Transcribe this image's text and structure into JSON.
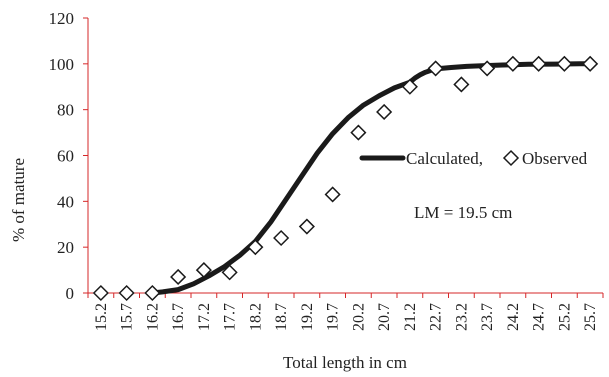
{
  "chart_data": {
    "type": "line",
    "xlabel": "Total length in cm",
    "ylabel": "% of mature",
    "ylim": [
      0,
      120
    ],
    "yticks": [
      0,
      20,
      40,
      60,
      80,
      100,
      120
    ],
    "categories": [
      "15.2",
      "15.7",
      "16.2",
      "16.7",
      "17.2",
      "17.7",
      "18.2",
      "18.7",
      "19.2",
      "19.7",
      "20.2",
      "20.7",
      "21.2",
      "22.7",
      "23.2",
      "23.7",
      "24.2",
      "24.7",
      "25.2",
      "25.7"
    ],
    "legend_position": "right",
    "annotation": "LM = 19.5 cm",
    "colors": {
      "axes": "#d62728",
      "series": "#1a1a1a"
    },
    "series": [
      {
        "name": "Calculated,",
        "style": "line",
        "x": [
          16.2,
          16.4,
          16.7,
          17.0,
          17.3,
          17.6,
          17.9,
          18.2,
          18.5,
          18.8,
          19.1,
          19.4,
          19.7,
          20.0,
          20.3,
          20.6,
          20.9,
          21.2,
          21.5,
          21.8,
          22.1,
          22.4,
          22.7,
          23.0,
          23.3,
          23.6,
          24.0,
          24.5,
          25.0,
          25.5,
          25.7
        ],
        "y": [
          0,
          0.5,
          1.5,
          4,
          7.5,
          11.5,
          16.5,
          22.5,
          31,
          41,
          51,
          61,
          69.5,
          76.5,
          82,
          86,
          89.5,
          92,
          93.8,
          95.2,
          96.3,
          97.1,
          97.8,
          98.4,
          98.9,
          99.2,
          99.5,
          99.8,
          99.9,
          100,
          100
        ]
      },
      {
        "name": "Observed",
        "style": "diamond",
        "x": [
          15.2,
          15.7,
          16.2,
          16.7,
          17.2,
          17.7,
          18.2,
          18.7,
          19.2,
          19.7,
          20.2,
          20.7,
          21.2,
          22.7,
          23.2,
          23.7,
          24.2,
          24.7,
          25.2,
          25.7
        ],
        "y": [
          0,
          0,
          0,
          7,
          10,
          9,
          20,
          24,
          29,
          43,
          70,
          79,
          90,
          98,
          91,
          98,
          100,
          100,
          100,
          100
        ]
      }
    ]
  }
}
